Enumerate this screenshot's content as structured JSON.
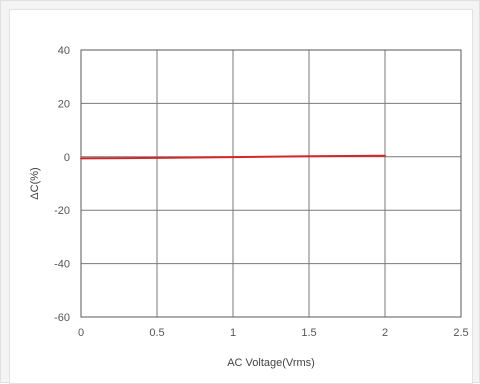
{
  "chart_data": {
    "type": "line",
    "title": "",
    "xlabel": "AC Voltage(Vrms)",
    "ylabel": "ΔC(%)",
    "xlim": [
      0,
      2.5
    ],
    "ylim": [
      -60,
      40
    ],
    "x_ticks": [
      "0",
      "0.5",
      "1",
      "1.5",
      "2",
      "2.5"
    ],
    "y_ticks": [
      "40",
      "20",
      "0",
      "-20",
      "-40",
      "-60"
    ],
    "grid": true,
    "series": [
      {
        "color": "#d62728",
        "x": [
          0,
          0.5,
          1,
          1.5,
          2
        ],
        "y": [
          -0.6,
          -0.4,
          -0.1,
          0.2,
          0.4
        ]
      }
    ]
  }
}
